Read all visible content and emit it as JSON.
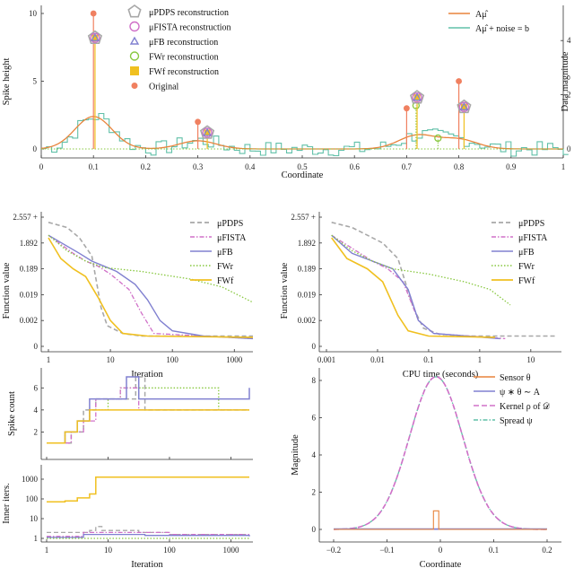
{
  "chart_data": [
    {
      "id": "top",
      "type": "scatter",
      "xlabel": "Coordinate",
      "ylabel": "Spike height",
      "ylabel_right": "Data magnitude",
      "xlim": [
        0,
        1
      ],
      "ylim": [
        0,
        10
      ],
      "xticks": [
        "0",
        "0.1",
        "0.2",
        "0.3",
        "0.4",
        "0.5",
        "0.6",
        "0.7",
        "0.8",
        "0.9",
        "1"
      ],
      "yticks": [
        "0",
        "5",
        "10"
      ],
      "yticks_right": [
        "0",
        "2",
        "4"
      ],
      "legend_left": [
        "μPDPS reconstruction",
        "μFISTA reconstruction",
        "μFB reconstruction",
        "FWr reconstruction",
        "FWf reconstruction",
        "Original"
      ],
      "legend_right": [
        "Aμ̂",
        "Aμ̂ + noise = b"
      ],
      "original_spikes": [
        {
          "x": 0.1,
          "y": 10.0
        },
        {
          "x": 0.3,
          "y": 2.0
        },
        {
          "x": 0.7,
          "y": 3.0
        },
        {
          "x": 0.8,
          "y": 5.0
        }
      ],
      "reconstructed_spikes": [
        {
          "x": 0.103,
          "y": 8.2
        },
        {
          "x": 0.318,
          "y": 1.2
        },
        {
          "x": 0.72,
          "y": 3.8
        },
        {
          "x": 0.81,
          "y": 3.1
        }
      ],
      "fwr_extra": [
        {
          "x": 0.718,
          "y": 3.2
        },
        {
          "x": 0.76,
          "y": 0.8
        }
      ],
      "colors": {
        "pdps": "#a8a8a8",
        "fista": "#d070c8",
        "fb": "#8080d0",
        "fwr": "#88c840",
        "fwf": "#f0c020",
        "orig": "#f08060",
        "amu": "#e8843c",
        "noise": "#60c0a8"
      }
    },
    {
      "id": "iter",
      "type": "line",
      "xlabel": "Iteration",
      "ylabel": "Function value",
      "xscale": "log",
      "xticks": [
        "1",
        "10",
        "100",
        "1000"
      ],
      "yticks": [
        "0",
        "0.002",
        "0.019",
        "0.189",
        "1.892",
        "2.557 +"
      ],
      "legend": [
        "μPDPS",
        "μFISTA",
        "μFB",
        "FWr",
        "FWf"
      ]
    },
    {
      "id": "cpu",
      "type": "line",
      "xlabel": "CPU time (seconds)",
      "ylabel": "Function value",
      "xscale": "log",
      "xticks": [
        "0.001",
        "0.01",
        "0.1",
        "1",
        "10"
      ],
      "yticks": [
        "0",
        "0.002",
        "0.019",
        "0.189",
        "1.892",
        "2.557 +"
      ],
      "legend": [
        "μPDPS",
        "μFISTA",
        "μFB",
        "FWr",
        "FWf"
      ]
    },
    {
      "id": "spikes",
      "type": "line",
      "xlabel": "",
      "ylabel": "Spike count",
      "xscale": "log",
      "yticks": [
        "2",
        "4",
        "6"
      ]
    },
    {
      "id": "inner",
      "type": "line",
      "xlabel": "Iteration",
      "ylabel": "Inner iters.",
      "xscale": "log",
      "xticks": [
        "1",
        "10",
        "100",
        "1000"
      ],
      "yticks": [
        "1",
        "10",
        "100",
        "1000"
      ]
    },
    {
      "id": "kernel",
      "type": "line",
      "xlabel": "Coordinate",
      "ylabel": "Magnitude",
      "xlim": [
        -0.2,
        0.2
      ],
      "ylim": [
        0,
        8
      ],
      "xticks": [
        "−0.2",
        "−0.1",
        "0",
        "0.1",
        "0.2"
      ],
      "yticks": [
        "0",
        "2",
        "4",
        "6",
        "8"
      ],
      "legend": [
        "Sensor θ",
        "ψ ∗ θ ∼ A",
        "Kernel ρ of 𝒟",
        "Spread ψ"
      ],
      "gaussian_peak": 8.2,
      "gaussian_sigma": 0.05
    }
  ]
}
